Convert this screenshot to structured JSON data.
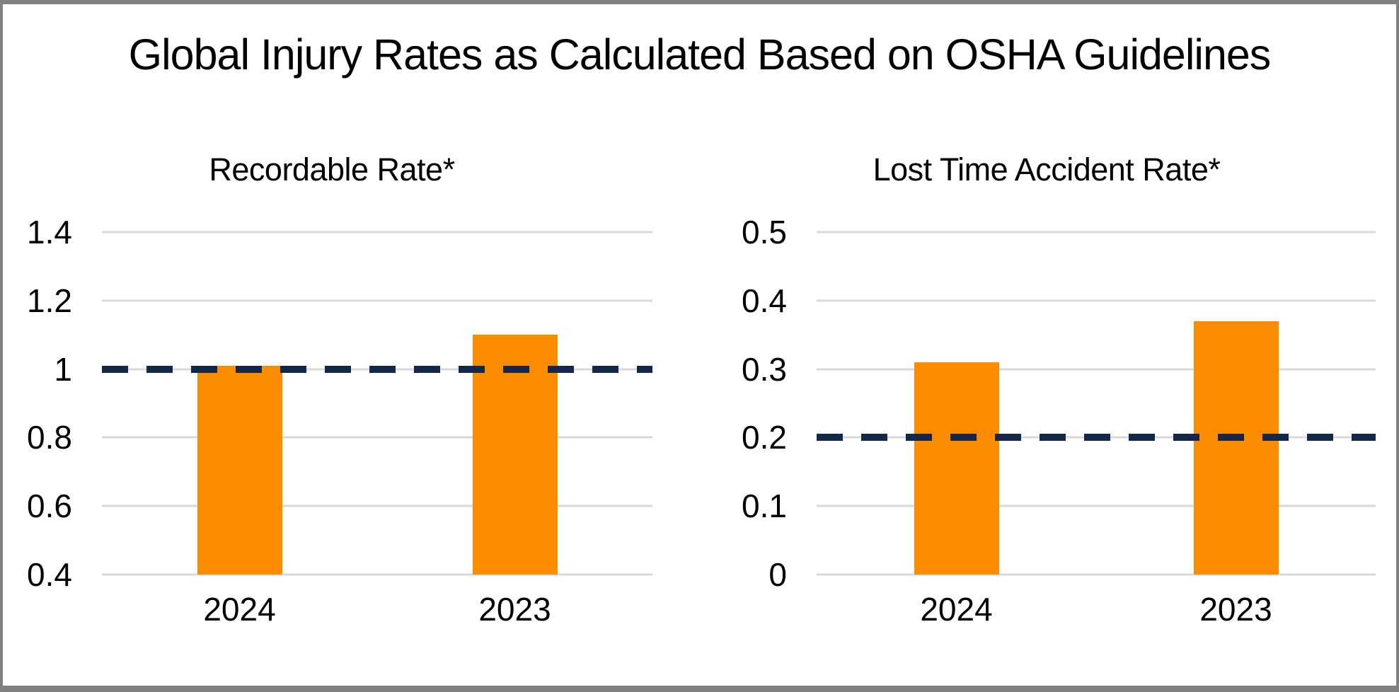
{
  "page": {
    "title": "Global Injury Rates as Calculated Based on OSHA Guidelines"
  },
  "colors": {
    "bar": "#FB8C00",
    "target_line": "#13264B",
    "gridline": "#D9D9D9",
    "border": "#808080",
    "background": "#FFFFFF",
    "text": "#000000"
  },
  "chart_data": [
    {
      "type": "bar",
      "title": "Recordable Rate*",
      "categories": [
        "2024",
        "2023"
      ],
      "values": [
        1.01,
        1.1
      ],
      "target_line": 1.0,
      "ylim": [
        0.4,
        1.4
      ],
      "ytick_labels": [
        "1.4",
        "1.2",
        "1",
        "0.8",
        "0.6",
        "0.4"
      ],
      "grid": true,
      "legend": "none",
      "bars_clipped_at_axis_min": true
    },
    {
      "type": "bar",
      "title": "Lost Time Accident Rate*",
      "categories": [
        "2024",
        "2023"
      ],
      "values": [
        0.31,
        0.37
      ],
      "target_line": 0.2,
      "ylim": [
        0,
        0.5
      ],
      "ytick_labels": [
        "0.5",
        "0.4",
        "0.3",
        "0.2",
        "0.1",
        "0"
      ],
      "grid": true,
      "legend": "none",
      "bars_clipped_at_axis_min": false
    }
  ]
}
